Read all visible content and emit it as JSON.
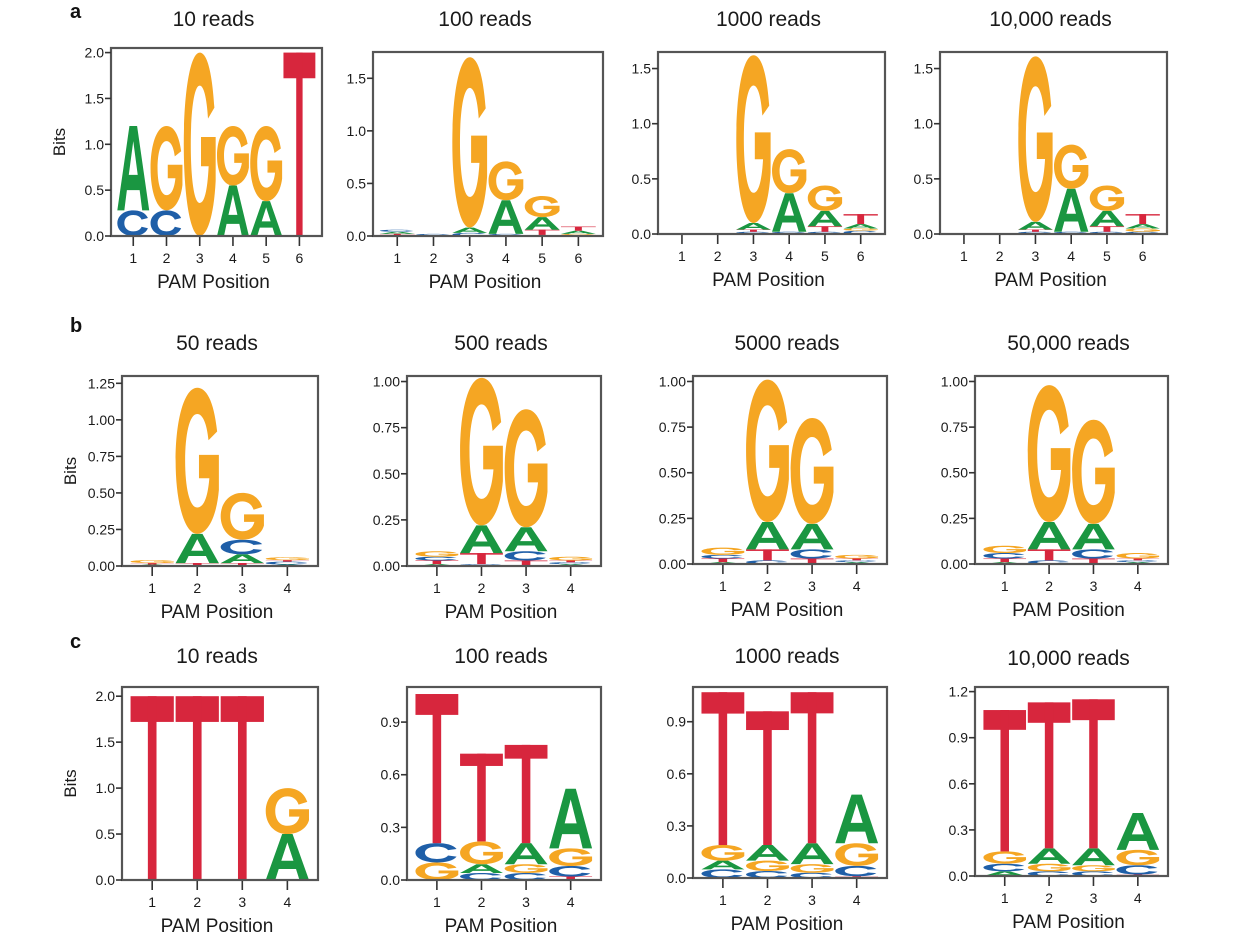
{
  "figure": {
    "colors": {
      "A": "#1a9641",
      "C": "#1f5fa8",
      "G": "#f5a623",
      "T": "#d7263d"
    }
  },
  "chart_data": [
    {
      "type": "sequence-logo",
      "row": "a",
      "panel_letter": "a",
      "title": "10 reads",
      "xlabel": "PAM Position",
      "ylabel": "Bits",
      "ylim": [
        0,
        2.05
      ],
      "yticks": [
        "0.0",
        "0.5",
        "1.0",
        "1.5",
        "2.0"
      ],
      "ytick_values": [
        0,
        0.5,
        1.0,
        1.5,
        2.0
      ],
      "positions": [
        "1",
        "2",
        "3",
        "4",
        "5",
        "6"
      ],
      "stacks": [
        [
          [
            "C",
            0.28
          ],
          [
            "A",
            0.92
          ]
        ],
        [
          [
            "C",
            0.28
          ],
          [
            "G",
            0.92
          ]
        ],
        [
          [
            "G",
            2.0
          ]
        ],
        [
          [
            "A",
            0.55
          ],
          [
            "G",
            0.65
          ]
        ],
        [
          [
            "A",
            0.38
          ],
          [
            "G",
            0.82
          ]
        ],
        [
          [
            "T",
            2.0
          ]
        ]
      ]
    },
    {
      "type": "sequence-logo",
      "row": "a",
      "title": "100 reads",
      "xlabel": "PAM Position",
      "ylabel": "",
      "ylim": [
        0,
        1.75
      ],
      "yticks": [
        "0.0",
        "0.5",
        "1.0",
        "1.5"
      ],
      "ytick_values": [
        0,
        0.5,
        1.0,
        1.5
      ],
      "positions": [
        "1",
        "2",
        "3",
        "4",
        "5",
        "6"
      ],
      "stacks": [
        [
          [
            "T",
            0.02
          ],
          [
            "A",
            0.02
          ],
          [
            "C",
            0.02
          ]
        ],
        [
          [
            "C",
            0.02
          ]
        ],
        [
          [
            "C",
            0.03
          ],
          [
            "A",
            0.05
          ],
          [
            "G",
            1.62
          ]
        ],
        [
          [
            "C",
            0.02
          ],
          [
            "A",
            0.32
          ],
          [
            "G",
            0.37
          ]
        ],
        [
          [
            "C",
            0.01
          ],
          [
            "T",
            0.05
          ],
          [
            "A",
            0.12
          ],
          [
            "G",
            0.2
          ]
        ],
        [
          [
            "G",
            0.02
          ],
          [
            "A",
            0.03
          ],
          [
            "T",
            0.04
          ]
        ]
      ]
    },
    {
      "type": "sequence-logo",
      "row": "a",
      "title": "1000 reads",
      "xlabel": "PAM Position",
      "ylabel": "",
      "ylim": [
        0,
        1.65
      ],
      "yticks": [
        "0.0",
        "0.5",
        "1.0",
        "1.5"
      ],
      "ytick_values": [
        0,
        0.5,
        1.0,
        1.5
      ],
      "positions": [
        "1",
        "2",
        "3",
        "4",
        "5",
        "6"
      ],
      "stacks": [
        [],
        [],
        [
          [
            "C",
            0.02
          ],
          [
            "T",
            0.02
          ],
          [
            "A",
            0.06
          ],
          [
            "G",
            1.52
          ]
        ],
        [
          [
            "C",
            0.02
          ],
          [
            "A",
            0.35
          ],
          [
            "G",
            0.4
          ]
        ],
        [
          [
            "C",
            0.02
          ],
          [
            "T",
            0.05
          ],
          [
            "A",
            0.14
          ],
          [
            "G",
            0.23
          ]
        ],
        [
          [
            "C",
            0.03
          ],
          [
            "G",
            0.02
          ],
          [
            "A",
            0.04
          ],
          [
            "T",
            0.09
          ]
        ]
      ]
    },
    {
      "type": "sequence-logo",
      "row": "a",
      "title": "10,000 reads",
      "xlabel": "PAM Position",
      "ylabel": "",
      "ylim": [
        0,
        1.65
      ],
      "yticks": [
        "0.0",
        "0.5",
        "1.0",
        "1.5"
      ],
      "ytick_values": [
        0,
        0.5,
        1.0,
        1.5
      ],
      "positions": [
        "1",
        "2",
        "3",
        "4",
        "5",
        "6"
      ],
      "stacks": [
        [],
        [],
        [
          [
            "C",
            0.02
          ],
          [
            "T",
            0.02
          ],
          [
            "A",
            0.07
          ],
          [
            "G",
            1.5
          ]
        ],
        [
          [
            "C",
            0.02
          ],
          [
            "A",
            0.39
          ],
          [
            "G",
            0.4
          ]
        ],
        [
          [
            "C",
            0.02
          ],
          [
            "T",
            0.05
          ],
          [
            "A",
            0.14
          ],
          [
            "G",
            0.23
          ]
        ],
        [
          [
            "C",
            0.02
          ],
          [
            "G",
            0.03
          ],
          [
            "A",
            0.04
          ],
          [
            "T",
            0.09
          ]
        ]
      ]
    },
    {
      "type": "sequence-logo",
      "row": "b",
      "panel_letter": "b",
      "title": "50 reads",
      "xlabel": "PAM Position",
      "ylabel": "Bits",
      "ylim": [
        0,
        1.3
      ],
      "yticks": [
        "0.00",
        "0.25",
        "0.50",
        "0.75",
        "1.00",
        "1.25"
      ],
      "ytick_values": [
        0,
        0.25,
        0.5,
        0.75,
        1.0,
        1.25
      ],
      "positions": [
        "1",
        "2",
        "3",
        "4"
      ],
      "stacks": [
        [
          [
            "A",
            0.01
          ],
          [
            "T",
            0.01
          ],
          [
            "G",
            0.02
          ]
        ],
        [
          [
            "T",
            0.02
          ],
          [
            "A",
            0.2
          ],
          [
            "G",
            1.0
          ]
        ],
        [
          [
            "T",
            0.02
          ],
          [
            "A",
            0.06
          ],
          [
            "C",
            0.1
          ],
          [
            "G",
            0.32
          ]
        ],
        [
          [
            "A",
            0.01
          ],
          [
            "C",
            0.02
          ],
          [
            "T",
            0.01
          ],
          [
            "G",
            0.02
          ]
        ]
      ]
    },
    {
      "type": "sequence-logo",
      "row": "b",
      "title": "500 reads",
      "xlabel": "PAM Position",
      "ylabel": "",
      "ylim": [
        0,
        1.03
      ],
      "yticks": [
        "0.00",
        "0.25",
        "0.50",
        "0.75",
        "1.00"
      ],
      "ytick_values": [
        0,
        0.25,
        0.5,
        0.75,
        1.0
      ],
      "positions": [
        "1",
        "2",
        "3",
        "4"
      ],
      "stacks": [
        [
          [
            "A",
            0.01
          ],
          [
            "T",
            0.02
          ],
          [
            "C",
            0.02
          ],
          [
            "G",
            0.03
          ]
        ],
        [
          [
            "C",
            0.01
          ],
          [
            "T",
            0.06
          ],
          [
            "A",
            0.15
          ],
          [
            "G",
            0.8
          ]
        ],
        [
          [
            "T",
            0.03
          ],
          [
            "C",
            0.05
          ],
          [
            "A",
            0.13
          ],
          [
            "G",
            0.64
          ]
        ],
        [
          [
            "A",
            0.01
          ],
          [
            "C",
            0.01
          ],
          [
            "T",
            0.01
          ],
          [
            "G",
            0.02
          ]
        ]
      ]
    },
    {
      "type": "sequence-logo",
      "row": "b",
      "title": "5000 reads",
      "xlabel": "PAM Position",
      "ylabel": "",
      "ylim": [
        0,
        1.03
      ],
      "yticks": [
        "0.00",
        "0.25",
        "0.50",
        "0.75",
        "1.00"
      ],
      "ytick_values": [
        0,
        0.25,
        0.5,
        0.75,
        1.0
      ],
      "positions": [
        "1",
        "2",
        "3",
        "4"
      ],
      "stacks": [
        [
          [
            "A",
            0.01
          ],
          [
            "T",
            0.02
          ],
          [
            "C",
            0.02
          ],
          [
            "G",
            0.04
          ]
        ],
        [
          [
            "C",
            0.02
          ],
          [
            "T",
            0.06
          ],
          [
            "A",
            0.15
          ],
          [
            "G",
            0.78
          ]
        ],
        [
          [
            "T",
            0.03
          ],
          [
            "C",
            0.05
          ],
          [
            "A",
            0.14
          ],
          [
            "G",
            0.58
          ]
        ],
        [
          [
            "A",
            0.01
          ],
          [
            "C",
            0.01
          ],
          [
            "T",
            0.01
          ],
          [
            "G",
            0.02
          ]
        ]
      ]
    },
    {
      "type": "sequence-logo",
      "row": "b",
      "title": "50,000 reads",
      "xlabel": "PAM Position",
      "ylabel": "",
      "ylim": [
        0,
        1.03
      ],
      "yticks": [
        "0.00",
        "0.25",
        "0.50",
        "0.75",
        "1.00"
      ],
      "ytick_values": [
        0,
        0.25,
        0.5,
        0.75,
        1.0
      ],
      "positions": [
        "1",
        "2",
        "3",
        "4"
      ],
      "stacks": [
        [
          [
            "A",
            0.01
          ],
          [
            "T",
            0.02
          ],
          [
            "C",
            0.03
          ],
          [
            "G",
            0.04
          ]
        ],
        [
          [
            "C",
            0.02
          ],
          [
            "T",
            0.06
          ],
          [
            "A",
            0.15
          ],
          [
            "G",
            0.75
          ]
        ],
        [
          [
            "T",
            0.03
          ],
          [
            "C",
            0.05
          ],
          [
            "A",
            0.14
          ],
          [
            "G",
            0.57
          ]
        ],
        [
          [
            "A",
            0.01
          ],
          [
            "C",
            0.01
          ],
          [
            "T",
            0.01
          ],
          [
            "G",
            0.03
          ]
        ]
      ]
    },
    {
      "type": "sequence-logo",
      "row": "c",
      "panel_letter": "c",
      "title": "10 reads",
      "xlabel": "PAM Position",
      "ylabel": "Bits",
      "ylim": [
        0,
        2.1
      ],
      "yticks": [
        "0.0",
        "0.5",
        "1.0",
        "1.5",
        "2.0"
      ],
      "ytick_values": [
        0,
        0.5,
        1.0,
        1.5,
        2.0
      ],
      "positions": [
        "1",
        "2",
        "3",
        "4"
      ],
      "stacks": [
        [
          [
            "T",
            2.0
          ]
        ],
        [
          [
            "T",
            2.0
          ]
        ],
        [
          [
            "T",
            2.0
          ]
        ],
        [
          [
            "A",
            0.5
          ],
          [
            "G",
            0.5
          ]
        ]
      ]
    },
    {
      "type": "sequence-logo",
      "row": "c",
      "title": "100 reads",
      "xlabel": "PAM Position",
      "ylabel": "",
      "ylim": [
        0,
        1.1
      ],
      "yticks": [
        "0.0",
        "0.3",
        "0.6",
        "0.9"
      ],
      "ytick_values": [
        0,
        0.3,
        0.6,
        0.9
      ],
      "positions": [
        "1",
        "2",
        "3",
        "4"
      ],
      "stacks": [
        [
          [
            "G",
            0.1
          ],
          [
            "C",
            0.11
          ],
          [
            "T",
            0.85
          ]
        ],
        [
          [
            "C",
            0.04
          ],
          [
            "A",
            0.05
          ],
          [
            "G",
            0.13
          ],
          [
            "T",
            0.5
          ]
        ],
        [
          [
            "C",
            0.04
          ],
          [
            "G",
            0.05
          ],
          [
            "A",
            0.12
          ],
          [
            "T",
            0.56
          ]
        ],
        [
          [
            "T",
            0.02
          ],
          [
            "C",
            0.06
          ],
          [
            "G",
            0.1
          ],
          [
            "A",
            0.34
          ]
        ]
      ]
    },
    {
      "type": "sequence-logo",
      "row": "c",
      "title": "1000 reads",
      "xlabel": "PAM Position",
      "ylabel": "",
      "ylim": [
        0,
        1.1
      ],
      "yticks": [
        "0.0",
        "0.3",
        "0.6",
        "0.9"
      ],
      "ytick_values": [
        0,
        0.3,
        0.6,
        0.9
      ],
      "positions": [
        "1",
        "2",
        "3",
        "4"
      ],
      "stacks": [
        [
          [
            "C",
            0.05
          ],
          [
            "A",
            0.05
          ],
          [
            "G",
            0.09
          ],
          [
            "T",
            0.88
          ]
        ],
        [
          [
            "C",
            0.04
          ],
          [
            "G",
            0.06
          ],
          [
            "A",
            0.09
          ],
          [
            "T",
            0.77
          ]
        ],
        [
          [
            "C",
            0.03
          ],
          [
            "G",
            0.05
          ],
          [
            "A",
            0.12
          ],
          [
            "T",
            0.87
          ]
        ],
        [
          [
            "T",
            0.01
          ],
          [
            "C",
            0.06
          ],
          [
            "G",
            0.13
          ],
          [
            "A",
            0.28
          ]
        ]
      ]
    },
    {
      "type": "sequence-logo",
      "row": "c",
      "title": "10,000 reads",
      "xlabel": "PAM Position",
      "ylabel": "",
      "ylim": [
        0,
        1.23
      ],
      "yticks": [
        "0.0",
        "0.3",
        "0.6",
        "0.9",
        "1.2"
      ],
      "ytick_values": [
        0,
        0.3,
        0.6,
        0.9,
        1.2
      ],
      "positions": [
        "1",
        "2",
        "3",
        "4"
      ],
      "stacks": [
        [
          [
            "A",
            0.03
          ],
          [
            "C",
            0.05
          ],
          [
            "G",
            0.08
          ],
          [
            "T",
            0.92
          ]
        ],
        [
          [
            "C",
            0.03
          ],
          [
            "G",
            0.05
          ],
          [
            "A",
            0.1
          ],
          [
            "T",
            0.95
          ]
        ],
        [
          [
            "C",
            0.03
          ],
          [
            "G",
            0.04
          ],
          [
            "A",
            0.11
          ],
          [
            "T",
            0.97
          ]
        ],
        [
          [
            "T",
            0.01
          ],
          [
            "C",
            0.06
          ],
          [
            "G",
            0.1
          ],
          [
            "A",
            0.24
          ]
        ]
      ]
    }
  ]
}
